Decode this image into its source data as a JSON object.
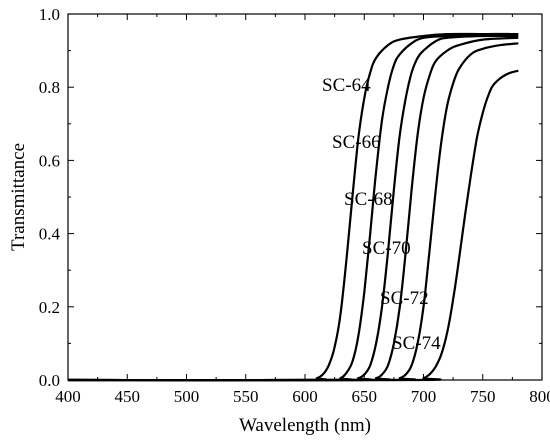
{
  "chart_data": {
    "type": "line",
    "title": "",
    "xlabel": "Wavelength (nm)",
    "ylabel": "Transmittance",
    "xlim": [
      400,
      800
    ],
    "ylim": [
      0,
      1.0
    ],
    "xticks": [
      400,
      450,
      500,
      550,
      600,
      650,
      700,
      750,
      800
    ],
    "xtick_labels": [
      "400",
      "450",
      "500",
      "550",
      "600",
      "650",
      "700",
      "750",
      "800"
    ],
    "yticks": [
      0,
      0.2,
      0.4,
      0.6,
      0.8,
      1.0
    ],
    "ytick_labels": [
      "0.0",
      "0.2",
      "0.4",
      "0.6",
      "0.8",
      "1.0"
    ],
    "grid": false,
    "legend": "none",
    "line_color": "#000000",
    "series": [
      {
        "name": "SC-64",
        "x": [
          400,
          600,
          610,
          615,
          620,
          625,
          630,
          635,
          640,
          645,
          650,
          655,
          660,
          670,
          680,
          700,
          720,
          750,
          780
        ],
        "y": [
          0.0,
          0.0,
          0.005,
          0.015,
          0.04,
          0.09,
          0.18,
          0.33,
          0.5,
          0.66,
          0.77,
          0.84,
          0.88,
          0.915,
          0.93,
          0.94,
          0.945,
          0.945,
          0.945
        ]
      },
      {
        "name": "SC-66",
        "x": [
          400,
          620,
          630,
          635,
          640,
          645,
          650,
          655,
          660,
          665,
          670,
          675,
          680,
          690,
          700,
          720,
          750,
          780
        ],
        "y": [
          0.0,
          0.0,
          0.005,
          0.02,
          0.05,
          0.12,
          0.24,
          0.4,
          0.57,
          0.71,
          0.8,
          0.86,
          0.89,
          0.92,
          0.935,
          0.94,
          0.945,
          0.945
        ]
      },
      {
        "name": "SC-68",
        "x": [
          400,
          635,
          645,
          650,
          655,
          660,
          665,
          670,
          675,
          680,
          685,
          690,
          695,
          700,
          710,
          720,
          750,
          780
        ],
        "y": [
          0.0,
          0.0,
          0.005,
          0.015,
          0.04,
          0.1,
          0.2,
          0.35,
          0.52,
          0.67,
          0.77,
          0.84,
          0.88,
          0.9,
          0.925,
          0.935,
          0.94,
          0.94
        ]
      },
      {
        "name": "SC-70",
        "x": [
          400,
          650,
          660,
          665,
          670,
          675,
          680,
          685,
          690,
          695,
          700,
          705,
          710,
          720,
          730,
          750,
          780
        ],
        "y": [
          0.0,
          0.0,
          0.005,
          0.015,
          0.04,
          0.1,
          0.2,
          0.35,
          0.52,
          0.67,
          0.77,
          0.83,
          0.87,
          0.9,
          0.915,
          0.93,
          0.935
        ]
      },
      {
        "name": "SC-72",
        "x": [
          400,
          670,
          680,
          685,
          690,
          695,
          700,
          705,
          710,
          715,
          720,
          725,
          730,
          740,
          750,
          765,
          780
        ],
        "y": [
          0.0,
          0.0,
          0.005,
          0.015,
          0.04,
          0.1,
          0.2,
          0.35,
          0.51,
          0.65,
          0.75,
          0.81,
          0.85,
          0.89,
          0.905,
          0.915,
          0.92
        ]
      },
      {
        "name": "SC-74",
        "x": [
          400,
          690,
          700,
          705,
          710,
          715,
          720,
          725,
          730,
          735,
          740,
          745,
          750,
          755,
          760,
          770,
          780
        ],
        "y": [
          0.0,
          0.0,
          0.005,
          0.015,
          0.035,
          0.07,
          0.13,
          0.22,
          0.33,
          0.45,
          0.56,
          0.66,
          0.73,
          0.78,
          0.81,
          0.835,
          0.845
        ]
      }
    ],
    "annotations": [
      "SC-64",
      "SC-66",
      "SC-68",
      "SC-70",
      "SC-72",
      "SC-74"
    ]
  }
}
